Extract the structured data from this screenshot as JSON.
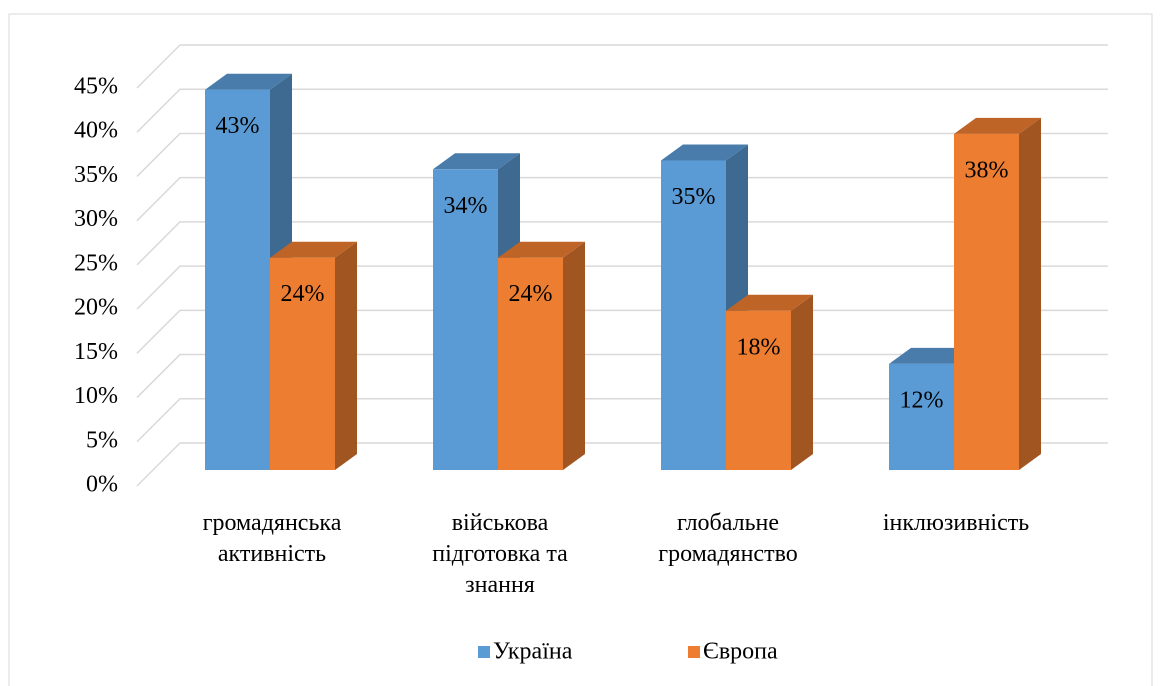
{
  "chart_data": {
    "type": "bar3d",
    "categories": [
      "громадянська активність",
      "військова підготовка та знання",
      "глобальне громадянство",
      "інклюзивність"
    ],
    "series": [
      {
        "name": "Україна",
        "color": "#5b9bd5",
        "values": [
          43,
          34,
          35,
          12
        ],
        "value_labels": [
          "43%",
          "34%",
          "35%",
          "12%"
        ]
      },
      {
        "name": "Європа",
        "color": "#ed7d31",
        "values": [
          24,
          24,
          18,
          38
        ],
        "value_labels": [
          "24%",
          "24%",
          "18%",
          "38%"
        ]
      }
    ],
    "ylim": [
      0,
      45
    ],
    "yticks": [
      {
        "value": 0,
        "label": "0%"
      },
      {
        "value": 5,
        "label": "5%"
      },
      {
        "value": 10,
        "label": "10%"
      },
      {
        "value": 15,
        "label": "15%"
      },
      {
        "value": 20,
        "label": "20%"
      },
      {
        "value": 25,
        "label": "25%"
      },
      {
        "value": 30,
        "label": "30%"
      },
      {
        "value": 35,
        "label": "35%"
      },
      {
        "value": 40,
        "label": "40%"
      },
      {
        "value": 45,
        "label": "45%"
      }
    ],
    "grid": true,
    "legend": "bottom"
  }
}
